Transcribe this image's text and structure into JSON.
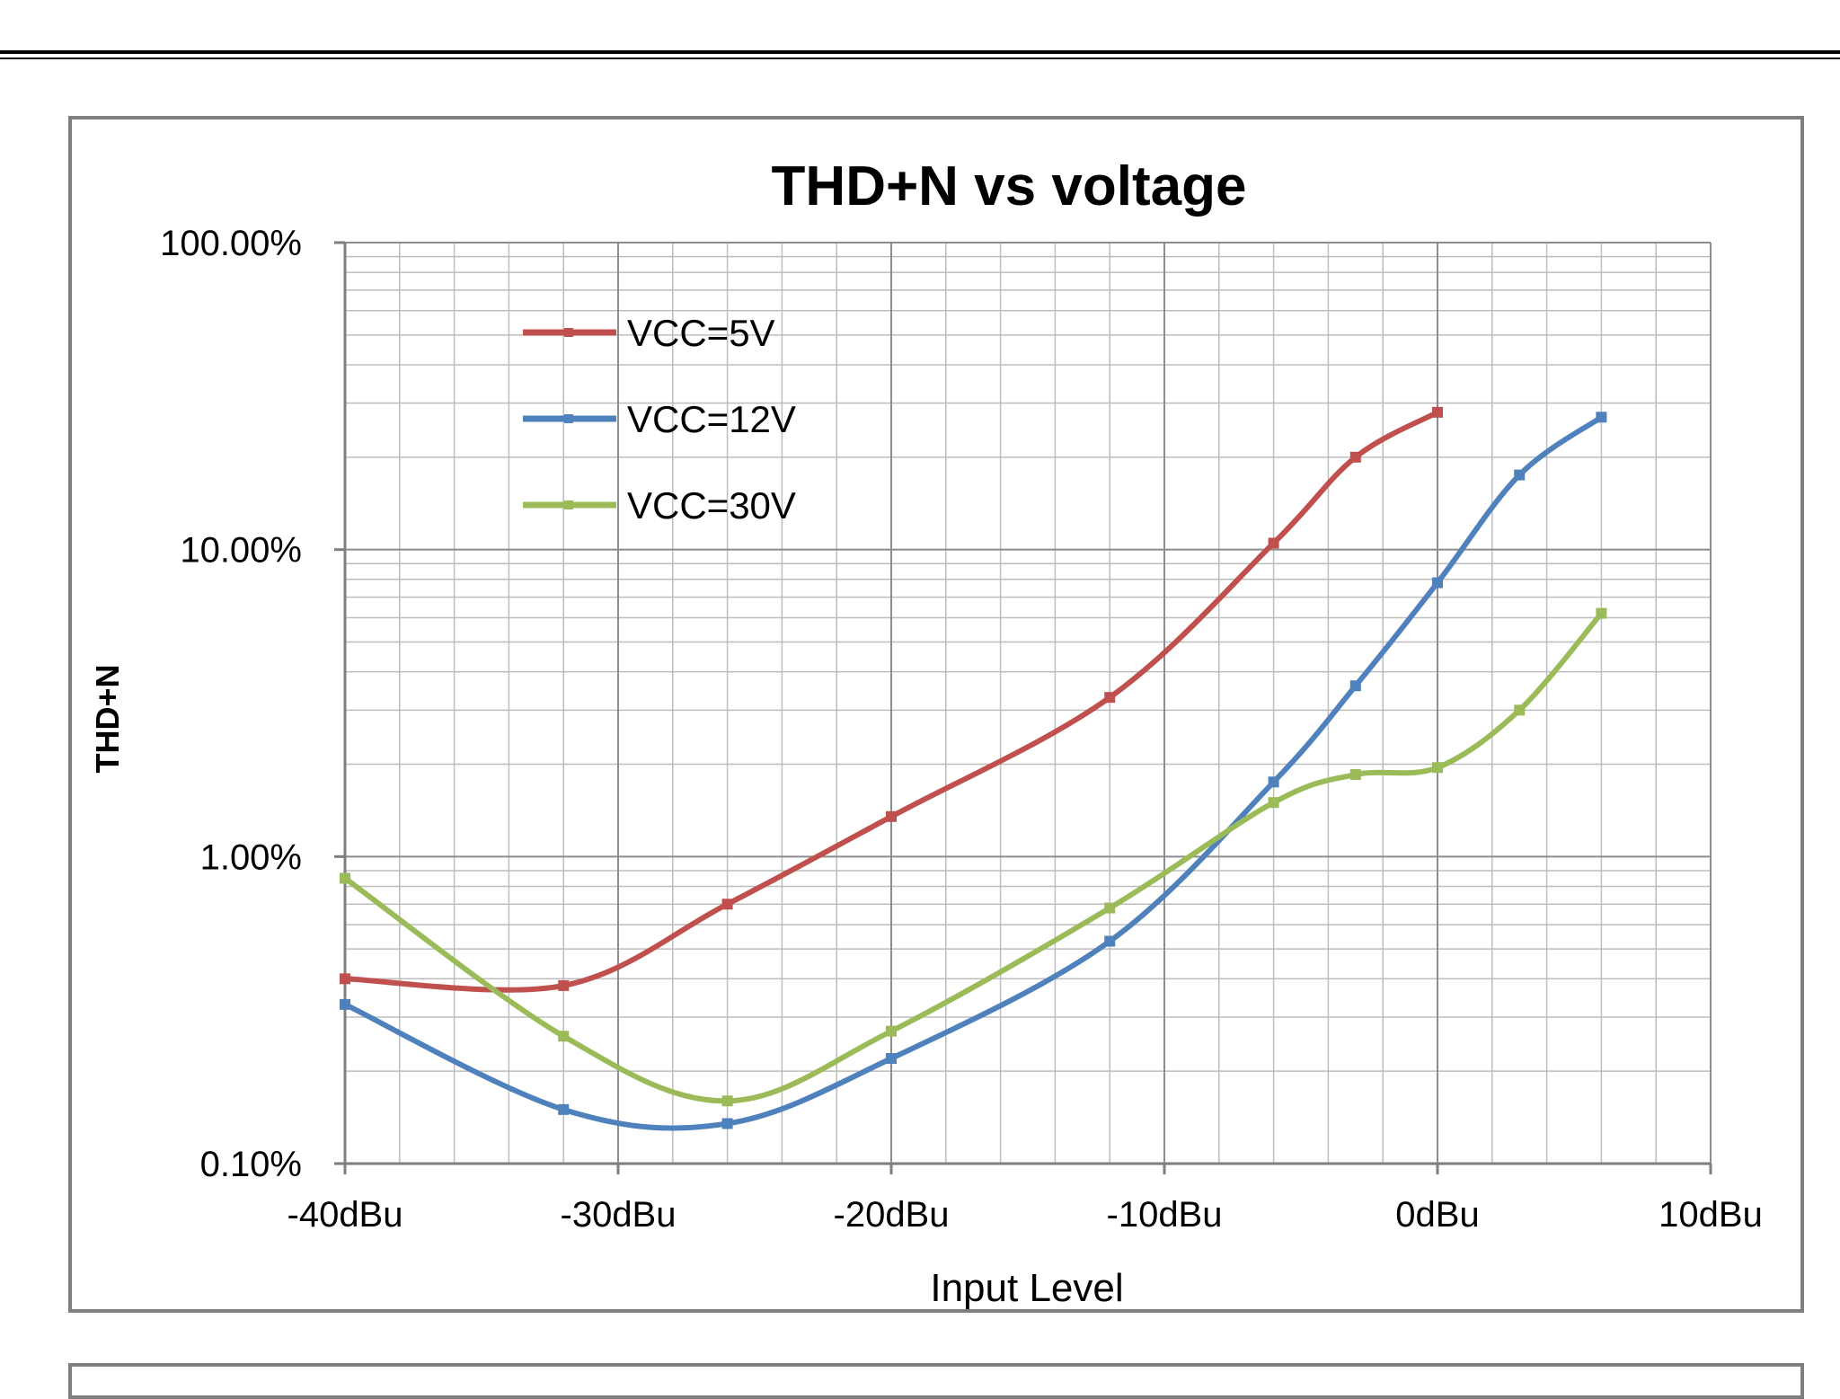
{
  "chart_data": {
    "type": "line",
    "title": "THD+N vs voltage",
    "xlabel": "Input Level",
    "ylabel": "THD+N",
    "x_scale": "linear",
    "y_scale": "log",
    "xlim": [
      -40,
      10
    ],
    "ylim": [
      0.1,
      100
    ],
    "x_ticks": [
      -40,
      -30,
      -20,
      -10,
      0,
      10
    ],
    "x_tick_labels": [
      "-40dBu",
      "-30dBu",
      "-20dBu",
      "-10dBu",
      "0dBu",
      "10dBu"
    ],
    "y_ticks": [
      0.1,
      1,
      10,
      100
    ],
    "y_tick_labels": [
      "0.10%",
      "1.00%",
      "10.00%",
      "100.00%"
    ],
    "grid": true,
    "legend_position": "top-left",
    "series": [
      {
        "name": "VCC=5V",
        "color": "#c0504d",
        "x": [
          -40,
          -32,
          -26,
          -20,
          -12,
          -6,
          -3,
          0
        ],
        "y": [
          0.4,
          0.38,
          0.7,
          1.35,
          3.3,
          10.5,
          20,
          28
        ]
      },
      {
        "name": "VCC=12V",
        "color": "#4f81bd",
        "x": [
          -40,
          -32,
          -26,
          -20,
          -12,
          -6,
          -3,
          0,
          3,
          6
        ],
        "y": [
          0.33,
          0.15,
          0.135,
          0.22,
          0.53,
          1.75,
          3.6,
          7.8,
          17.5,
          27
        ]
      },
      {
        "name": "VCC=30V",
        "color": "#9bbb59",
        "x": [
          -40,
          -32,
          -26,
          -20,
          -12,
          -6,
          -3,
          0,
          3,
          6
        ],
        "y": [
          0.85,
          0.26,
          0.16,
          0.27,
          0.68,
          1.5,
          1.85,
          1.95,
          3.0,
          6.2
        ]
      }
    ]
  }
}
